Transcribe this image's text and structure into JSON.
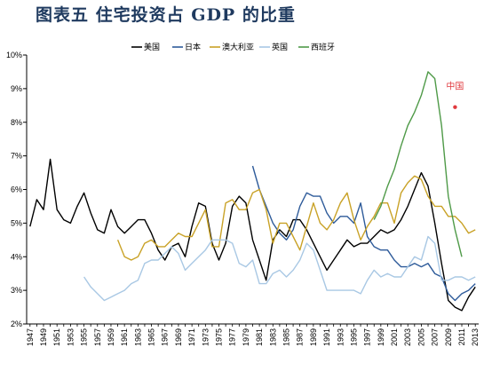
{
  "title": "图表五   住宅投资占 GDP 的比重",
  "chart_data": {
    "type": "line",
    "title": "图表五   住宅投资占 GDP 的比重",
    "xlabel": "",
    "ylabel": "",
    "xlim": [
      1946.5,
      2013.5
    ],
    "ylim": [
      2,
      10
    ],
    "yticks": [
      "2%",
      "3%",
      "4%",
      "5%",
      "6%",
      "7%",
      "8%",
      "9%",
      "10%"
    ],
    "xticks": [
      1947,
      1949,
      1951,
      1953,
      1955,
      1957,
      1959,
      1961,
      1963,
      1965,
      1967,
      1969,
      1971,
      1973,
      1975,
      1977,
      1979,
      1981,
      1983,
      1985,
      1987,
      1989,
      1991,
      1993,
      1995,
      1997,
      1999,
      2001,
      2003,
      2005,
      2007,
      2009,
      2011,
      2013
    ],
    "grid": false,
    "legend_position": "top",
    "series": [
      {
        "name": "美国",
        "color": "#000000",
        "x": [
          1947,
          1948,
          1949,
          1950,
          1951,
          1952,
          1953,
          1954,
          1955,
          1956,
          1957,
          1958,
          1959,
          1960,
          1961,
          1962,
          1963,
          1964,
          1965,
          1966,
          1967,
          1968,
          1969,
          1970,
          1971,
          1972,
          1973,
          1974,
          1975,
          1976,
          1977,
          1978,
          1979,
          1980,
          1981,
          1982,
          1983,
          1984,
          1985,
          1986,
          1987,
          1988,
          1989,
          1990,
          1991,
          1992,
          1993,
          1994,
          1995,
          1996,
          1997,
          1998,
          1999,
          2000,
          2001,
          2002,
          2003,
          2004,
          2005,
          2006,
          2007,
          2008,
          2009,
          2010,
          2011,
          2012,
          2013
        ],
        "values": [
          4.9,
          5.7,
          5.4,
          6.9,
          5.4,
          5.1,
          5.0,
          5.5,
          5.9,
          5.3,
          4.8,
          4.7,
          5.4,
          4.9,
          4.7,
          4.9,
          5.1,
          5.1,
          4.7,
          4.2,
          3.9,
          4.3,
          4.4,
          4.0,
          4.9,
          5.6,
          5.5,
          4.4,
          3.9,
          4.4,
          5.5,
          5.8,
          5.6,
          4.5,
          3.9,
          3.3,
          4.5,
          4.8,
          4.6,
          5.1,
          5.1,
          4.8,
          4.4,
          4.0,
          3.6,
          3.9,
          4.2,
          4.5,
          4.3,
          4.4,
          4.4,
          4.6,
          4.8,
          4.7,
          4.8,
          5.1,
          5.5,
          6.0,
          6.5,
          6.1,
          5.0,
          3.8,
          2.7,
          2.5,
          2.4,
          2.8,
          3.1
        ]
      },
      {
        "name": "日本",
        "color": "#2e5b9a",
        "x": [
          1980,
          1981,
          1982,
          1983,
          1984,
          1985,
          1986,
          1987,
          1988,
          1989,
          1990,
          1991,
          1992,
          1993,
          1994,
          1995,
          1996,
          1997,
          1998,
          1999,
          2000,
          2001,
          2002,
          2003,
          2004,
          2005,
          2006,
          2007,
          2008,
          2009,
          2010,
          2011,
          2012,
          2013
        ],
        "values": [
          6.7,
          6.0,
          5.5,
          5.0,
          4.7,
          4.5,
          4.8,
          5.5,
          5.9,
          5.8,
          5.8,
          5.3,
          5.0,
          5.2,
          5.2,
          5.0,
          5.6,
          4.6,
          4.3,
          4.2,
          4.2,
          3.9,
          3.7,
          3.7,
          3.8,
          3.7,
          3.8,
          3.5,
          3.4,
          2.9,
          2.7,
          2.9,
          3.0,
          3.2
        ]
      },
      {
        "name": "澳大利亚",
        "color": "#c9a227",
        "x": [
          1960,
          1961,
          1962,
          1963,
          1964,
          1965,
          1966,
          1967,
          1968,
          1969,
          1970,
          1971,
          1972,
          1973,
          1974,
          1975,
          1976,
          1977,
          1978,
          1979,
          1980,
          1981,
          1982,
          1983,
          1984,
          1985,
          1986,
          1987,
          1988,
          1989,
          1990,
          1991,
          1992,
          1993,
          1994,
          1995,
          1996,
          1997,
          1998,
          1999,
          2000,
          2001,
          2002,
          2003,
          2004,
          2005,
          2006,
          2007,
          2008,
          2009,
          2010,
          2011,
          2012,
          2013
        ],
        "values": [
          4.5,
          4.0,
          3.9,
          4.0,
          4.4,
          4.5,
          4.3,
          4.3,
          4.5,
          4.7,
          4.6,
          4.6,
          5.0,
          5.4,
          4.3,
          4.3,
          5.6,
          5.7,
          5.4,
          5.4,
          5.9,
          6.0,
          5.4,
          4.4,
          5.0,
          5.0,
          4.6,
          4.2,
          4.9,
          5.6,
          5.0,
          4.8,
          5.1,
          5.6,
          5.9,
          5.1,
          4.5,
          4.9,
          5.2,
          5.6,
          5.6,
          5.0,
          5.9,
          6.2,
          6.4,
          6.3,
          5.8,
          5.5,
          5.5,
          5.2,
          5.2,
          5.0,
          4.7,
          4.8
        ]
      },
      {
        "name": "英国",
        "color": "#a9c8e4",
        "x": [
          1955,
          1956,
          1957,
          1958,
          1959,
          1960,
          1961,
          1962,
          1963,
          1964,
          1965,
          1966,
          1967,
          1968,
          1969,
          1970,
          1971,
          1972,
          1973,
          1974,
          1975,
          1976,
          1977,
          1978,
          1979,
          1980,
          1981,
          1982,
          1983,
          1984,
          1985,
          1986,
          1987,
          1988,
          1989,
          1990,
          1991,
          1992,
          1993,
          1994,
          1995,
          1996,
          1997,
          1998,
          1999,
          2000,
          2001,
          2002,
          2003,
          2004,
          2005,
          2006,
          2007,
          2008,
          2009,
          2010,
          2011,
          2012,
          2013
        ],
        "values": [
          3.4,
          3.1,
          2.9,
          2.7,
          2.8,
          2.9,
          3.0,
          3.2,
          3.3,
          3.8,
          3.9,
          3.9,
          4.1,
          4.3,
          4.1,
          3.6,
          3.8,
          4.0,
          4.2,
          4.5,
          4.5,
          4.5,
          4.4,
          3.8,
          3.7,
          3.9,
          3.2,
          3.2,
          3.5,
          3.6,
          3.4,
          3.6,
          3.9,
          4.4,
          4.2,
          3.6,
          3.0,
          3.0,
          3.0,
          3.0,
          3.0,
          2.9,
          3.3,
          3.6,
          3.4,
          3.5,
          3.4,
          3.4,
          3.7,
          4.0,
          3.9,
          4.6,
          4.4,
          3.3,
          3.3,
          3.4,
          3.4,
          3.3,
          3.4
        ]
      },
      {
        "name": "西班牙",
        "color": "#4f9a48",
        "x": [
          1998,
          1999,
          2000,
          2001,
          2002,
          2003,
          2004,
          2005,
          2006,
          2007,
          2008,
          2009,
          2010,
          2011
        ],
        "values": [
          5.1,
          5.5,
          6.1,
          6.6,
          7.3,
          7.9,
          8.3,
          8.8,
          9.5,
          9.3,
          7.9,
          5.8,
          4.8,
          4.0
        ]
      }
    ],
    "annotations": [
      {
        "label": "中国",
        "x": 2010,
        "y": 8.45,
        "color": "#e0393e"
      }
    ]
  }
}
